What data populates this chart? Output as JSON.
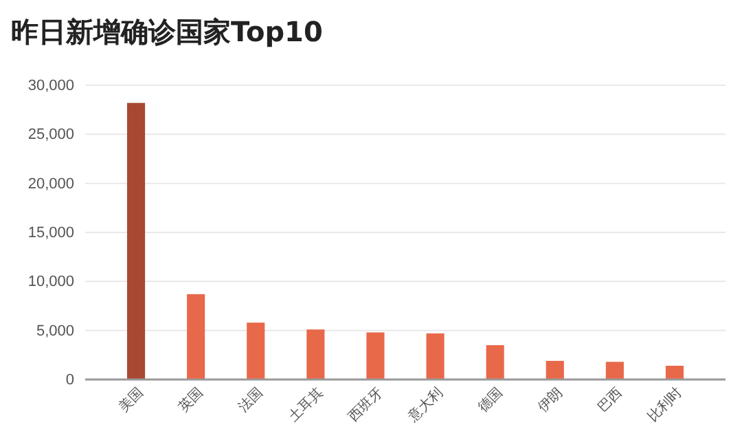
{
  "chart_data": {
    "type": "bar",
    "title": "昨日新增确诊国家Top10",
    "categories": [
      "美国",
      "英国",
      "法国",
      "土耳其",
      "西班牙",
      "意大利",
      "德国",
      "伊朗",
      "巴西",
      "比利时"
    ],
    "values": [
      28200,
      8700,
      5800,
      5100,
      4800,
      4700,
      3500,
      1900,
      1800,
      1400
    ],
    "colors": [
      "#a84832",
      "#e8694a",
      "#e8694a",
      "#e8694a",
      "#e8694a",
      "#e8694a",
      "#e8694a",
      "#e8694a",
      "#e8694a",
      "#e8694a"
    ],
    "ylim": [
      0,
      30000
    ],
    "yticks": [
      {
        "value": 0,
        "label": "0"
      },
      {
        "value": 5000,
        "label": "5,000"
      },
      {
        "value": 10000,
        "label": "10,000"
      },
      {
        "value": 15000,
        "label": "15,000"
      },
      {
        "value": 20000,
        "label": "20,000"
      },
      {
        "value": 25000,
        "label": "25,000"
      },
      {
        "value": 30000,
        "label": "30,000"
      }
    ],
    "grid": "y"
  }
}
